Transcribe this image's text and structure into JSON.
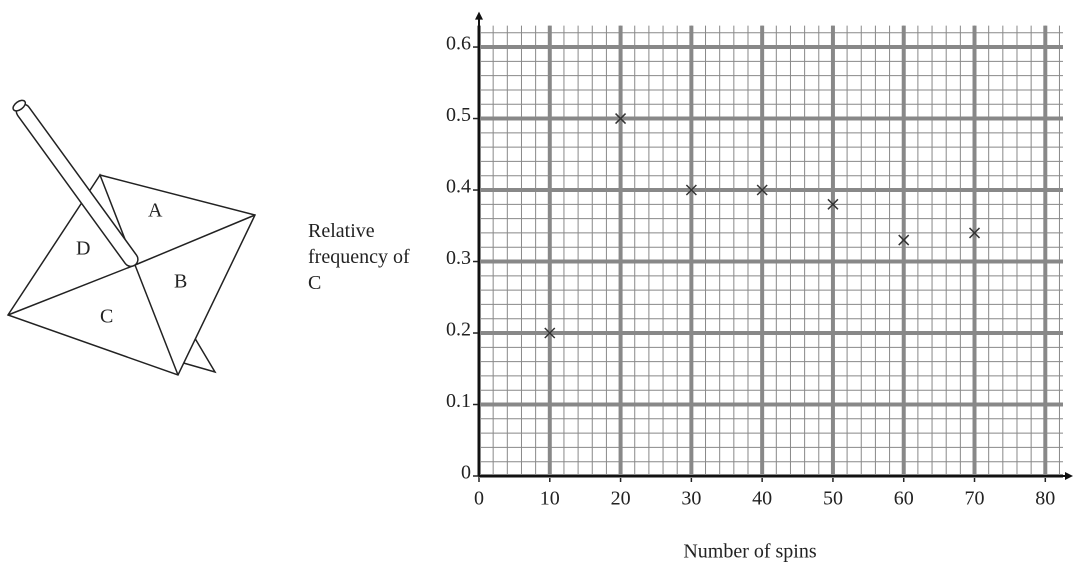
{
  "diagram": {
    "labels": [
      "A",
      "B",
      "C",
      "D"
    ]
  },
  "chart_data": {
    "type": "scatter",
    "xlabel": "Number of spins",
    "ylabel": "Relative frequency of C",
    "x": [
      10,
      20,
      30,
      40,
      50,
      60,
      70
    ],
    "values": [
      0.2,
      0.5,
      0.4,
      0.4,
      0.38,
      0.33,
      0.34
    ],
    "marker": "x",
    "color": "#333333",
    "xlim": [
      0,
      82.5
    ],
    "ylim": [
      0,
      0.63
    ],
    "xticks": [
      0,
      10,
      20,
      30,
      40,
      50,
      60,
      70,
      80
    ],
    "yticks": [
      0,
      0.1,
      0.2,
      0.3,
      0.4,
      0.5,
      0.6
    ],
    "grid": true,
    "minor_xstep": 2,
    "minor_ystep": 0.02
  }
}
